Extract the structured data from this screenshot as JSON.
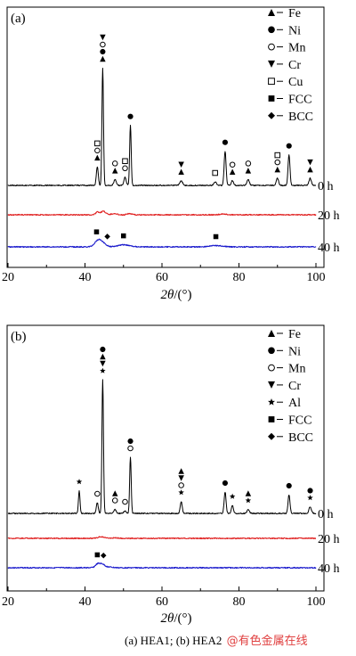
{
  "chart_data": [
    {
      "type": "line",
      "panel_label": "(a)",
      "xlabel_italic": "2θ",
      "xlabel_unit": "/(°)",
      "xlim": [
        20,
        100
      ],
      "xticks": [
        20,
        40,
        60,
        80,
        100
      ],
      "grid": false,
      "legend_position": "top-right",
      "legend": [
        {
          "symbol": "triangle-up",
          "label": "Fe"
        },
        {
          "symbol": "circle-filled",
          "label": "Ni"
        },
        {
          "symbol": "circle-open",
          "label": "Mn"
        },
        {
          "symbol": "triangle-down",
          "label": "Cr"
        },
        {
          "symbol": "square-open",
          "label": "Cu"
        },
        {
          "symbol": "square-filled",
          "label": "FCC"
        },
        {
          "symbol": "diamond-filled",
          "label": "BCC"
        }
      ],
      "series": [
        {
          "name": "0 h",
          "color": "#000000",
          "peaks": [
            {
              "x": 43.2,
              "h": 0.16,
              "w": 0.25
            },
            {
              "x": 44.6,
              "h": 1.0,
              "w": 0.2
            },
            {
              "x": 47.8,
              "h": 0.05,
              "w": 0.3
            },
            {
              "x": 50.4,
              "h": 0.07,
              "w": 0.3
            },
            {
              "x": 51.8,
              "h": 0.51,
              "w": 0.2
            },
            {
              "x": 65.0,
              "h": 0.04,
              "w": 0.35
            },
            {
              "x": 73.8,
              "h": 0.03,
              "w": 0.35
            },
            {
              "x": 76.4,
              "h": 0.29,
              "w": 0.25
            },
            {
              "x": 78.3,
              "h": 0.04,
              "w": 0.3
            },
            {
              "x": 82.4,
              "h": 0.05,
              "w": 0.3
            },
            {
              "x": 90.0,
              "h": 0.06,
              "w": 0.3
            },
            {
              "x": 93.0,
              "h": 0.26,
              "w": 0.25
            },
            {
              "x": 98.5,
              "h": 0.06,
              "w": 0.3
            }
          ]
        },
        {
          "name": "20 h",
          "color": "#e02020",
          "peaks": [
            {
              "x": 43.3,
              "h": 0.1,
              "w": 0.5
            },
            {
              "x": 44.8,
              "h": 0.13,
              "w": 0.6
            },
            {
              "x": 47.5,
              "h": 0.04,
              "w": 0.8
            },
            {
              "x": 51.5,
              "h": 0.05,
              "w": 0.6
            },
            {
              "x": 76.0,
              "h": 0.03,
              "w": 0.9
            }
          ]
        },
        {
          "name": "40 h",
          "color": "#1a1acc",
          "peaks": [
            {
              "x": 43.5,
              "h": 0.26,
              "w": 0.9
            },
            {
              "x": 44.9,
              "h": 0.08,
              "w": 0.8
            },
            {
              "x": 50.0,
              "h": 0.08,
              "w": 1.5
            },
            {
              "x": 74.0,
              "h": 0.05,
              "w": 1.6
            }
          ]
        }
      ],
      "peak_markers": [
        {
          "x": 43.2,
          "series": "0 h",
          "symbols": [
            "triangle-up",
            "circle-open",
            "square-open"
          ]
        },
        {
          "x": 44.6,
          "series": "0 h",
          "symbols": [
            "triangle-up",
            "circle-filled",
            "circle-open",
            "triangle-down"
          ]
        },
        {
          "x": 47.8,
          "series": "0 h",
          "symbols": [
            "triangle-up",
            "circle-open"
          ]
        },
        {
          "x": 50.4,
          "series": "0 h",
          "symbols": [
            "circle-open",
            "square-open"
          ]
        },
        {
          "x": 51.8,
          "series": "0 h",
          "symbols": [
            "circle-filled"
          ]
        },
        {
          "x": 65.0,
          "series": "0 h",
          "symbols": [
            "triangle-up",
            "triangle-down"
          ]
        },
        {
          "x": 73.8,
          "series": "0 h",
          "symbols": [
            "square-open"
          ]
        },
        {
          "x": 76.4,
          "series": "0 h",
          "symbols": [
            "circle-filled"
          ]
        },
        {
          "x": 78.3,
          "series": "0 h",
          "symbols": [
            "triangle-up",
            "circle-open"
          ]
        },
        {
          "x": 82.4,
          "series": "0 h",
          "symbols": [
            "triangle-up",
            "circle-open"
          ]
        },
        {
          "x": 90.0,
          "series": "0 h",
          "symbols": [
            "triangle-up",
            "circle-open",
            "square-open"
          ]
        },
        {
          "x": 93.0,
          "series": "0 h",
          "symbols": [
            "circle-filled"
          ]
        },
        {
          "x": 98.5,
          "series": "0 h",
          "symbols": [
            "triangle-up",
            "triangle-down"
          ]
        },
        {
          "x": 43.0,
          "series": "40 h",
          "symbols": [
            "square-filled"
          ]
        },
        {
          "x": 45.8,
          "series": "40 h",
          "symbols": [
            "diamond-filled"
          ]
        },
        {
          "x": 50.0,
          "series": "40 h",
          "symbols": [
            "square-filled"
          ]
        },
        {
          "x": 74.0,
          "series": "40 h",
          "symbols": [
            "square-filled"
          ]
        }
      ]
    },
    {
      "type": "line",
      "panel_label": "(b)",
      "xlabel_italic": "2θ",
      "xlabel_unit": "/(°)",
      "xlim": [
        20,
        100
      ],
      "xticks": [
        20,
        40,
        60,
        80,
        100
      ],
      "grid": false,
      "legend_position": "top-right",
      "legend": [
        {
          "symbol": "triangle-up",
          "label": "Fe"
        },
        {
          "symbol": "circle-filled",
          "label": "Ni"
        },
        {
          "symbol": "circle-open",
          "label": "Mn"
        },
        {
          "symbol": "triangle-down",
          "label": "Cr"
        },
        {
          "symbol": "star",
          "label": "Al"
        },
        {
          "symbol": "square-filled",
          "label": "FCC"
        },
        {
          "symbol": "diamond-filled",
          "label": "BCC"
        }
      ],
      "series": [
        {
          "name": "0 h",
          "color": "#000000",
          "peaks": [
            {
              "x": 38.5,
              "h": 0.17,
              "w": 0.2
            },
            {
              "x": 43.2,
              "h": 0.08,
              "w": 0.25
            },
            {
              "x": 44.6,
              "h": 1.0,
              "w": 0.2
            },
            {
              "x": 47.8,
              "h": 0.03,
              "w": 0.3
            },
            {
              "x": 50.4,
              "h": 0.02,
              "w": 0.3
            },
            {
              "x": 51.8,
              "h": 0.42,
              "w": 0.2
            },
            {
              "x": 65.0,
              "h": 0.09,
              "w": 0.25
            },
            {
              "x": 76.4,
              "h": 0.16,
              "w": 0.25
            },
            {
              "x": 78.3,
              "h": 0.06,
              "w": 0.25
            },
            {
              "x": 82.4,
              "h": 0.03,
              "w": 0.3
            },
            {
              "x": 93.0,
              "h": 0.14,
              "w": 0.25
            },
            {
              "x": 98.5,
              "h": 0.05,
              "w": 0.3
            }
          ]
        },
        {
          "name": "20 h",
          "color": "#e02020",
          "peaks": [
            {
              "x": 44.2,
              "h": 0.06,
              "w": 0.8
            },
            {
              "x": 47.8,
              "h": 0.02,
              "w": 0.8
            }
          ]
        },
        {
          "name": "40 h",
          "color": "#1a1acc",
          "peaks": [
            {
              "x": 43.3,
              "h": 0.14,
              "w": 0.6
            },
            {
              "x": 44.5,
              "h": 0.12,
              "w": 0.6
            },
            {
              "x": 46.0,
              "h": 0.03,
              "w": 1.0
            }
          ]
        }
      ],
      "peak_markers": [
        {
          "x": 38.5,
          "series": "0 h",
          "symbols": [
            "star"
          ]
        },
        {
          "x": 43.2,
          "series": "0 h",
          "symbols": [
            "circle-open"
          ]
        },
        {
          "x": 44.6,
          "series": "0 h",
          "symbols": [
            "star",
            "triangle-down",
            "triangle-up",
            "circle-filled"
          ]
        },
        {
          "x": 47.8,
          "series": "0 h",
          "symbols": [
            "circle-open",
            "triangle-up"
          ]
        },
        {
          "x": 50.4,
          "series": "0 h",
          "symbols": [
            "circle-open"
          ]
        },
        {
          "x": 51.8,
          "series": "0 h",
          "symbols": [
            "circle-open",
            "circle-filled"
          ]
        },
        {
          "x": 65.0,
          "series": "0 h",
          "symbols": [
            "star",
            "circle-open",
            "triangle-down",
            "triangle-up"
          ]
        },
        {
          "x": 76.4,
          "series": "0 h",
          "symbols": [
            "circle-filled"
          ]
        },
        {
          "x": 78.3,
          "series": "0 h",
          "symbols": [
            "star"
          ]
        },
        {
          "x": 82.4,
          "series": "0 h",
          "symbols": [
            "star",
            "triangle-up"
          ]
        },
        {
          "x": 93.0,
          "series": "0 h",
          "symbols": [
            "circle-filled"
          ]
        },
        {
          "x": 98.5,
          "series": "0 h",
          "symbols": [
            "star",
            "circle-filled"
          ]
        },
        {
          "x": 43.2,
          "series": "40 h",
          "symbols": [
            "square-filled"
          ]
        },
        {
          "x": 44.8,
          "series": "40 h",
          "symbols": [
            "diamond-filled"
          ]
        }
      ]
    }
  ],
  "caption": {
    "text": "(a) HEA1; (b) HEA2",
    "watermark": "@有色金属在线"
  }
}
